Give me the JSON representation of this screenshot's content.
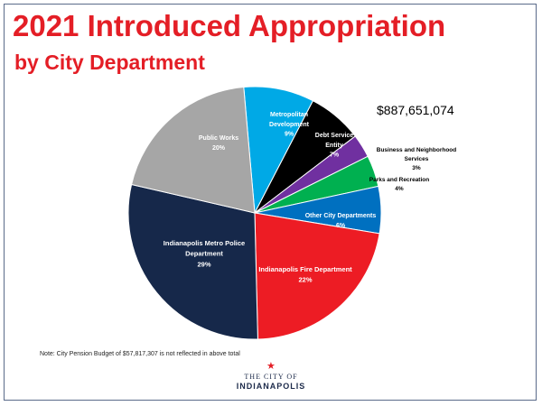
{
  "header": {
    "title": "2021 Introduced Appropriation",
    "subtitle": "by City Department"
  },
  "total_label": "$887,651,074",
  "note": "Note: City Pension Budget of $57,817,307 is not reflected in above total",
  "logo": {
    "line1": "THE CITY OF",
    "line2": "INDIANAPOLIS"
  },
  "chart_data": {
    "type": "pie",
    "title": "2021 Introduced Appropriation by City Department",
    "total": "$887,651,074",
    "slices": [
      {
        "name": "Metropolitan Development",
        "lines": [
          "Metropolitan",
          "Development",
          "9%"
        ],
        "value": 9,
        "color": "#00a9e6",
        "text_color": "#ffffff"
      },
      {
        "name": "Debt Service Entity",
        "lines": [
          "Debt Service",
          "Entity",
          "7%"
        ],
        "value": 7,
        "color": "#000000",
        "text_color": "#ffffff"
      },
      {
        "name": "Business and Neighborhood Services",
        "lines": [
          "Business  and  Neighborhood",
          "Services",
          "3%"
        ],
        "value": 3,
        "color": "#7030a0",
        "text_color": "#000000"
      },
      {
        "name": "Parks and Recreation",
        "lines": [
          "Parks and  Recreation",
          "4%"
        ],
        "value": 4,
        "color": "#00b050",
        "text_color": "#000000"
      },
      {
        "name": "Other City Departments",
        "lines": [
          "Other City Departments",
          "6%"
        ],
        "value": 6,
        "color": "#0070c0",
        "text_color": "#ffffff"
      },
      {
        "name": "Indianapolis Fire Department",
        "lines": [
          "Indianapolis  Fire Department",
          "22%"
        ],
        "value": 22,
        "color": "#ed1c24",
        "text_color": "#ffffff"
      },
      {
        "name": "Indianapolis Metro Police Department",
        "lines": [
          "Indianapolis  Metro Police",
          "Department",
          "29%"
        ],
        "value": 29,
        "color": "#16284a",
        "text_color": "#ffffff"
      },
      {
        "name": "Public Works",
        "lines": [
          "Public Works",
          "20%"
        ],
        "value": 20,
        "color": "#a6a6a6",
        "text_color": "#ffffff"
      }
    ]
  }
}
